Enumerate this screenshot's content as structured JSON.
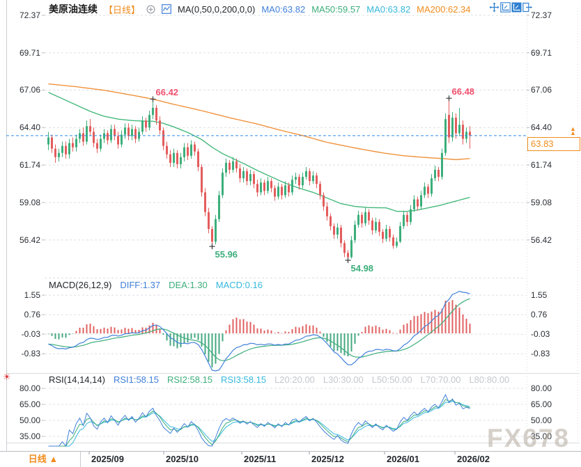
{
  "header": {
    "title": "美原油连续",
    "timeframe_tag": "【日线】",
    "ma_settings": "MA(0,50,0,200,0,0)",
    "ma0a": "MA0:63.82",
    "ma50": "MA50:59.57",
    "ma0b": "MA0:63.82",
    "ma200": "MA200:62.34"
  },
  "toolbar": {
    "icons": [
      "pan-icon",
      "zoom-axis-icon",
      "zoom-axis-active-icon",
      "collapse-right-icon"
    ]
  },
  "macd_header": {
    "label": "MACD(26,12,9)",
    "diff": "DIFF:1.37",
    "dea": "DEA:1.30",
    "macd": "MACD:0.16"
  },
  "rsi_header": {
    "label": "RSI(14,14,14)",
    "rsi1": "RSI1:58.15",
    "rsi2": "RSI2:58.15",
    "rsi3": "RSI3:58.15",
    "l20": "L20:20.00",
    "l30": "L30:30.00",
    "l50": "L50:50.00",
    "l70": "L70:70.00",
    "l80": "L80:80.00"
  },
  "bottom": {
    "timeframe_label": "日线",
    "arrow": "▲"
  },
  "watermark": "FX678",
  "price_tag": "63.83",
  "price_arrows": "▲\n▲",
  "chart_data": {
    "type": "candlestick",
    "symbol": "美原油连续",
    "period": "日线",
    "main": {
      "axis_labels": [
        "72.37",
        "69.71",
        "67.06",
        "64.40",
        "61.74",
        "59.08",
        "56.42"
      ],
      "axis_top_value": 72.37,
      "axis_bottom_value": 56.42,
      "current_price": 63.83,
      "annotations": [
        {
          "text": "66.42",
          "price": 66.42,
          "index": 30,
          "type": "swing-high",
          "color": "#F0506E"
        },
        {
          "text": "66.48",
          "price": 66.48,
          "index": 115,
          "type": "swing-high",
          "color": "#F0506E"
        },
        {
          "text": "55.96",
          "price": 55.96,
          "index": 47,
          "type": "swing-low",
          "color": "#3CAE7B"
        },
        {
          "text": "54.98",
          "price": 54.98,
          "index": 86,
          "type": "swing-low",
          "color": "#3CAE7B"
        }
      ],
      "ma50_anchors": [
        [
          0,
          66.9
        ],
        [
          4,
          66.45
        ],
        [
          8,
          66.0
        ],
        [
          12,
          65.55
        ],
        [
          16,
          65.2
        ],
        [
          20,
          65.0
        ],
        [
          24,
          64.9
        ],
        [
          28,
          64.85
        ],
        [
          30,
          64.85
        ],
        [
          33,
          64.7
        ],
        [
          36,
          64.45
        ],
        [
          40,
          64.05
        ],
        [
          44,
          63.55
        ],
        [
          47,
          63.0
        ],
        [
          50,
          62.55
        ],
        [
          53,
          62.2
        ],
        [
          56,
          61.85
        ],
        [
          60,
          61.35
        ],
        [
          64,
          60.9
        ],
        [
          68,
          60.45
        ],
        [
          72,
          60.1
        ],
        [
          76,
          59.8
        ],
        [
          80,
          59.4
        ],
        [
          84,
          59.0
        ],
        [
          88,
          58.8
        ],
        [
          92,
          58.72
        ],
        [
          97,
          58.7
        ],
        [
          100,
          58.45
        ],
        [
          103,
          58.45
        ],
        [
          106,
          58.55
        ],
        [
          109,
          58.7
        ],
        [
          112,
          58.85
        ],
        [
          115,
          59.05
        ],
        [
          118,
          59.25
        ],
        [
          121,
          59.45
        ]
      ],
      "ma200_anchors": [
        [
          0,
          67.5
        ],
        [
          8,
          67.3
        ],
        [
          16,
          67.05
        ],
        [
          24,
          66.7
        ],
        [
          30,
          66.42
        ],
        [
          36,
          66.05
        ],
        [
          44,
          65.6
        ],
        [
          52,
          65.1
        ],
        [
          60,
          64.65
        ],
        [
          66,
          64.25
        ],
        [
          73,
          63.83
        ],
        [
          80,
          63.35
        ],
        [
          88,
          62.95
        ],
        [
          96,
          62.6
        ],
        [
          102,
          62.4
        ],
        [
          108,
          62.28
        ],
        [
          113,
          62.2
        ],
        [
          117,
          62.12
        ],
        [
          121,
          62.2
        ]
      ],
      "candles": [
        [
          63.2,
          64.1,
          62.8,
          63.7
        ],
        [
          63.7,
          63.9,
          62.6,
          62.9
        ],
        [
          62.9,
          63.2,
          61.9,
          62.3
        ],
        [
          62.3,
          62.9,
          62.0,
          62.6
        ],
        [
          62.6,
          63.4,
          62.3,
          63.1
        ],
        [
          63.1,
          63.4,
          62.2,
          62.5
        ],
        [
          62.5,
          63.6,
          62.2,
          63.3
        ],
        [
          63.3,
          63.7,
          62.7,
          63.0
        ],
        [
          63.0,
          63.9,
          62.7,
          63.6
        ],
        [
          63.6,
          64.3,
          63.3,
          64.0
        ],
        [
          64.0,
          64.4,
          63.1,
          63.4
        ],
        [
          63.4,
          64.9,
          63.2,
          64.5
        ],
        [
          64.5,
          65.0,
          63.8,
          64.1
        ],
        [
          64.1,
          64.4,
          63.0,
          63.3
        ],
        [
          63.3,
          63.6,
          62.6,
          62.9
        ],
        [
          62.9,
          63.9,
          62.7,
          63.6
        ],
        [
          63.6,
          64.3,
          63.3,
          64.0
        ],
        [
          64.0,
          64.2,
          63.2,
          63.5
        ],
        [
          63.5,
          64.6,
          63.3,
          64.3
        ],
        [
          64.3,
          64.6,
          63.5,
          63.8
        ],
        [
          63.8,
          64.1,
          62.9,
          63.2
        ],
        [
          63.2,
          64.2,
          63.0,
          63.9
        ],
        [
          63.9,
          64.7,
          63.6,
          64.4
        ],
        [
          64.4,
          64.7,
          63.5,
          63.8
        ],
        [
          63.8,
          64.6,
          63.5,
          64.3
        ],
        [
          64.3,
          64.5,
          63.3,
          63.6
        ],
        [
          63.6,
          64.4,
          63.4,
          64.1
        ],
        [
          64.1,
          65.2,
          63.9,
          64.9
        ],
        [
          64.9,
          65.1,
          64.1,
          64.4
        ],
        [
          64.4,
          65.6,
          64.2,
          65.3
        ],
        [
          65.3,
          66.42,
          65.0,
          65.8
        ],
        [
          65.8,
          66.0,
          64.6,
          64.9
        ],
        [
          64.9,
          65.2,
          63.9,
          64.2
        ],
        [
          64.2,
          64.4,
          62.8,
          63.1
        ],
        [
          63.1,
          63.4,
          62.2,
          62.5
        ],
        [
          62.5,
          62.8,
          61.6,
          61.9
        ],
        [
          61.9,
          62.9,
          61.6,
          62.6
        ],
        [
          62.6,
          62.8,
          61.5,
          61.8
        ],
        [
          61.8,
          62.6,
          61.5,
          62.3
        ],
        [
          62.3,
          63.3,
          62.0,
          63.0
        ],
        [
          63.0,
          63.3,
          62.1,
          62.4
        ],
        [
          62.4,
          63.5,
          62.2,
          63.2
        ],
        [
          63.2,
          63.4,
          62.4,
          62.7
        ],
        [
          62.7,
          62.9,
          61.3,
          61.6
        ],
        [
          61.6,
          61.8,
          59.5,
          59.8
        ],
        [
          59.8,
          60.1,
          58.1,
          58.4
        ],
        [
          58.4,
          58.7,
          56.9,
          57.2
        ],
        [
          57.2,
          57.4,
          55.96,
          56.3
        ],
        [
          56.3,
          58.2,
          56.1,
          57.9
        ],
        [
          57.9,
          59.9,
          57.7,
          59.6
        ],
        [
          59.6,
          61.5,
          59.4,
          61.2
        ],
        [
          61.2,
          62.2,
          60.9,
          61.9
        ],
        [
          61.9,
          62.1,
          61.1,
          61.4
        ],
        [
          61.4,
          62.3,
          61.2,
          62.0
        ],
        [
          62.0,
          62.2,
          61.2,
          61.5
        ],
        [
          61.5,
          61.8,
          60.5,
          60.8
        ],
        [
          60.8,
          61.6,
          60.5,
          61.3
        ],
        [
          61.3,
          61.5,
          60.3,
          60.6
        ],
        [
          60.6,
          61.4,
          60.3,
          61.1
        ],
        [
          61.1,
          61.3,
          60.1,
          60.4
        ],
        [
          60.4,
          60.7,
          59.5,
          59.8
        ],
        [
          59.8,
          60.8,
          59.6,
          60.5
        ],
        [
          60.5,
          60.7,
          59.6,
          59.9
        ],
        [
          59.9,
          60.9,
          59.7,
          60.6
        ],
        [
          60.6,
          60.8,
          59.8,
          60.1
        ],
        [
          60.1,
          60.3,
          59.2,
          59.5
        ],
        [
          59.5,
          60.5,
          59.3,
          60.2
        ],
        [
          60.2,
          60.4,
          59.3,
          59.6
        ],
        [
          59.6,
          60.6,
          59.4,
          60.3
        ],
        [
          60.3,
          60.5,
          59.5,
          59.8
        ],
        [
          59.8,
          61.0,
          59.6,
          60.7
        ],
        [
          60.7,
          61.2,
          60.4,
          60.9
        ],
        [
          60.9,
          61.1,
          60.0,
          60.3
        ],
        [
          60.3,
          61.2,
          60.1,
          60.9
        ],
        [
          60.9,
          61.6,
          60.7,
          61.3
        ],
        [
          61.3,
          61.5,
          60.3,
          60.6
        ],
        [
          60.6,
          61.3,
          60.4,
          61.0
        ],
        [
          61.0,
          61.2,
          60.1,
          60.4
        ],
        [
          60.4,
          60.6,
          59.3,
          59.6
        ],
        [
          59.6,
          59.8,
          58.5,
          58.8
        ],
        [
          58.8,
          59.1,
          57.8,
          58.1
        ],
        [
          58.1,
          58.3,
          57.1,
          57.4
        ],
        [
          57.4,
          57.6,
          56.5,
          56.8
        ],
        [
          56.8,
          57.6,
          56.5,
          57.3
        ],
        [
          57.3,
          57.5,
          55.9,
          56.2
        ],
        [
          56.2,
          56.4,
          55.2,
          55.5
        ],
        [
          55.5,
          55.7,
          54.98,
          55.2
        ],
        [
          55.2,
          56.7,
          55.1,
          56.4
        ],
        [
          56.4,
          57.8,
          56.2,
          57.5
        ],
        [
          57.5,
          58.5,
          57.3,
          58.2
        ],
        [
          58.2,
          58.4,
          57.3,
          57.6
        ],
        [
          57.6,
          58.7,
          57.4,
          58.4
        ],
        [
          58.4,
          58.6,
          57.5,
          57.8
        ],
        [
          57.8,
          58.0,
          56.8,
          57.1
        ],
        [
          57.1,
          58.0,
          56.9,
          57.7
        ],
        [
          57.7,
          57.9,
          56.7,
          57.0
        ],
        [
          57.0,
          57.2,
          56.2,
          56.5
        ],
        [
          56.5,
          57.5,
          56.3,
          57.2
        ],
        [
          57.2,
          57.4,
          56.3,
          56.6
        ],
        [
          56.6,
          56.8,
          55.8,
          56.0
        ],
        [
          56.0,
          56.6,
          55.85,
          56.3
        ],
        [
          56.3,
          57.7,
          56.2,
          57.4
        ],
        [
          57.4,
          58.5,
          57.2,
          58.2
        ],
        [
          58.2,
          58.4,
          57.4,
          57.7
        ],
        [
          57.7,
          58.9,
          57.5,
          58.6
        ],
        [
          58.6,
          59.6,
          58.4,
          59.3
        ],
        [
          59.3,
          59.5,
          58.5,
          58.8
        ],
        [
          58.8,
          59.9,
          58.6,
          59.6
        ],
        [
          59.6,
          60.5,
          59.4,
          60.2
        ],
        [
          60.2,
          60.4,
          59.4,
          59.7
        ],
        [
          59.7,
          61.1,
          59.5,
          60.8
        ],
        [
          60.8,
          61.7,
          60.6,
          61.4
        ],
        [
          61.4,
          61.6,
          60.6,
          60.9
        ],
        [
          60.9,
          62.9,
          60.7,
          62.6
        ],
        [
          62.6,
          65.4,
          62.4,
          65.0
        ],
        [
          65.3,
          66.48,
          63.3,
          63.7
        ],
        [
          63.7,
          65.5,
          63.4,
          65.1
        ],
        [
          65.1,
          65.4,
          63.6,
          64.0
        ],
        [
          64.0,
          65.8,
          63.8,
          64.6
        ],
        [
          64.6,
          64.9,
          63.2,
          63.6
        ],
        [
          63.6,
          64.4,
          63.3,
          64.1
        ],
        [
          64.1,
          64.5,
          62.9,
          63.83
        ]
      ]
    },
    "macd": {
      "params": [
        26,
        12,
        9
      ],
      "diff": 1.37,
      "dea": 1.3,
      "macd": 0.16,
      "axis_labels": [
        "1.55",
        "0.76",
        "-0.03",
        "-0.83"
      ],
      "histogram_rule": "2x(DIF-DEA)"
    },
    "rsi": {
      "params": [
        14,
        14,
        14
      ],
      "rsi1": 58.15,
      "rsi2": 58.15,
      "rsi3": 58.15,
      "levels": [
        20,
        30,
        50,
        70,
        80
      ],
      "axis_labels": [
        "80.00",
        "65.00",
        "50.00",
        "35.00"
      ]
    },
    "x_axis": {
      "months": [
        {
          "label": "2025/09",
          "index": 12
        },
        {
          "label": "2025/10",
          "index": 33.4
        },
        {
          "label": "2025/11",
          "index": 55.8
        },
        {
          "label": "2025/12",
          "index": 75.2
        },
        {
          "label": "2026/01",
          "index": 96.8
        },
        {
          "label": "2026/02",
          "index": 117
        }
      ]
    },
    "indicators_preroll": {
      "start": 67.5,
      "bars": 60
    },
    "colors": {
      "up": "#3CAE7B",
      "down": "#E45C5C",
      "ma50_line": "#45B97C",
      "ma200_line": "#F0923C",
      "dif_line": "#4080D9",
      "dea_line": "#3CAE7B",
      "rsi1_line": "#4080D9",
      "rsi2_line": "#3CAE7B",
      "rsi3_line": "#35B8DC",
      "hist_up": "#E06060",
      "hist_down": "#45A880",
      "price_line": "#2E8BE6",
      "grid": "#DDDFE4",
      "accent_orange": "#F08C1E"
    }
  }
}
